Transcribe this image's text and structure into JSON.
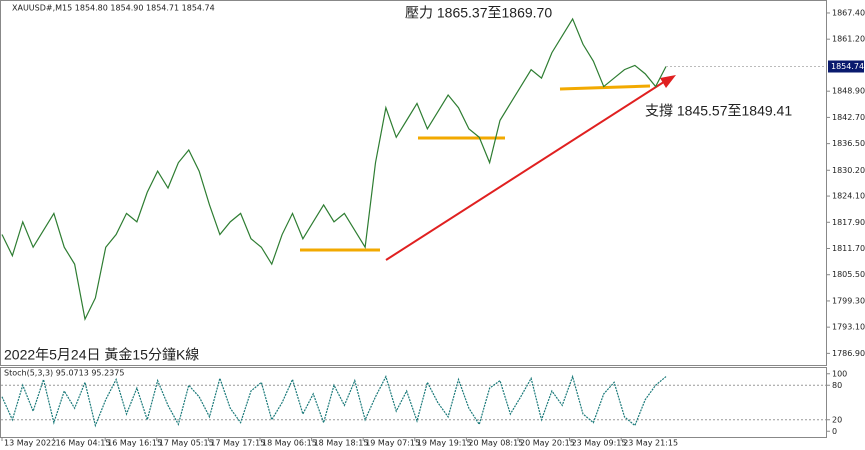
{
  "chart_data": [
    {
      "type": "line",
      "title": "XAUUSD#,M15  1854.80 1854.90 1854.71 1854.74",
      "annotations": [
        "壓力 1865.37至1869.70",
        "支撐 1845.57至1849.41",
        "2022年5月24日 黃金15分鐘K線"
      ],
      "values": [
        1815,
        1810,
        1818,
        1812,
        1816,
        1820,
        1812,
        1808,
        1795,
        1800,
        1812,
        1815,
        1820,
        1818,
        1825,
        1830,
        1826,
        1832,
        1835,
        1830,
        1822,
        1815,
        1818,
        1820,
        1814,
        1812,
        1808,
        1815,
        1820,
        1814,
        1818,
        1822,
        1818,
        1820,
        1816,
        1812,
        1832,
        1845,
        1838,
        1842,
        1846,
        1840,
        1844,
        1848,
        1845,
        1840,
        1838,
        1832,
        1842,
        1846,
        1850,
        1854,
        1852,
        1858,
        1862,
        1866,
        1860,
        1856,
        1850,
        1852,
        1854,
        1855,
        1853,
        1850,
        1854.74
      ],
      "color": "#2e7d32",
      "last_value": 1854.74,
      "last_value_label": "1854.74",
      "ylim": [
        1784.15,
        1870.23
      ],
      "yticks": [
        {
          "value": 1867.4,
          "label": "1867.40"
        },
        {
          "value": 1861.2,
          "label": "1861.20"
        },
        {
          "value": 1848.9,
          "label": "1848.90"
        },
        {
          "value": 1842.7,
          "label": "1842.70"
        },
        {
          "value": 1836.5,
          "label": "1836.50"
        },
        {
          "value": 1830.2,
          "label": "1830.20"
        },
        {
          "value": 1824.1,
          "label": "1824.10"
        },
        {
          "value": 1817.9,
          "label": "1817.90"
        },
        {
          "value": 1811.7,
          "label": "1811.70"
        },
        {
          "value": 1805.5,
          "label": "1805.50"
        },
        {
          "value": 1799.3,
          "label": "1799.30"
        },
        {
          "value": 1793.1,
          "label": "1793.10"
        },
        {
          "value": 1786.9,
          "label": "1786.90"
        }
      ],
      "xtick_labels": [
        "13 May 2022",
        "16 May 04:15",
        "16 May 16:15",
        "17 May 05:15",
        "17 May 17:15",
        "18 May 06:15",
        "18 May 18:15",
        "19 May 07:15",
        "19 May 19:15",
        "20 May 08:15",
        "20 May 20:15",
        "23 May 09:15",
        "23 May 21:15"
      ]
    },
    {
      "type": "line",
      "title": "Stoch(5,3,3) 95.0713 95.2375",
      "values": [
        60,
        20,
        80,
        35,
        90,
        15,
        70,
        40,
        85,
        10,
        55,
        90,
        30,
        75,
        20,
        88,
        45,
        12,
        80,
        60,
        25,
        92,
        40,
        15,
        70,
        85,
        20,
        50,
        90,
        30,
        65,
        15,
        80,
        45,
        88,
        20,
        60,
        95,
        35,
        70,
        18,
        85,
        50,
        25,
        90,
        40,
        12,
        75,
        88,
        30,
        60,
        92,
        20,
        70,
        45,
        95,
        30,
        15,
        65,
        85,
        25,
        10,
        55,
        80,
        95.07
      ],
      "color": "#1b7a7a",
      "ylim": [
        -10,
        110
      ],
      "yticks": [
        0,
        20,
        80,
        100
      ]
    }
  ]
}
